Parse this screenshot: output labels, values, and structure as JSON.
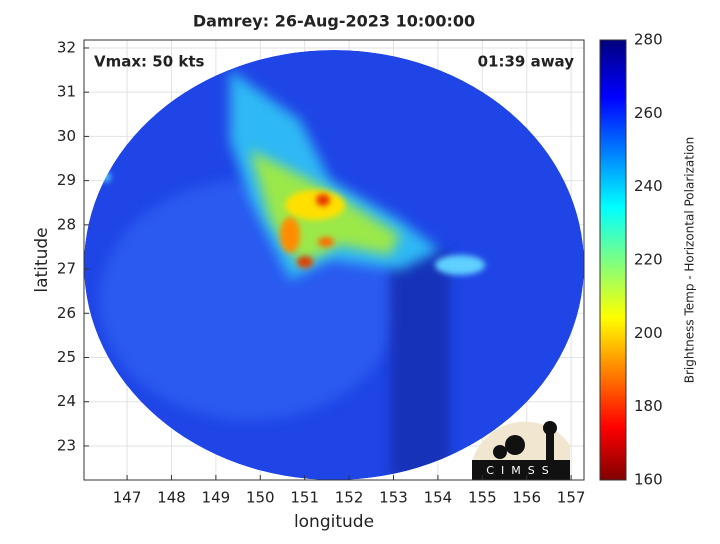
{
  "chart_data": {
    "type": "map",
    "title": "Damrey: 26-Aug-2023 10:00:00",
    "annotations": [
      "Vmax: 50 kts",
      "01:39 away"
    ],
    "x_label": "longitude",
    "y_label": "latitude",
    "xlim": [
      146.03,
      157.29
    ],
    "xticks": [
      147,
      148,
      149,
      150,
      151,
      152,
      153,
      154,
      155,
      156,
      157
    ],
    "ylim": [
      22.23,
      32.18
    ],
    "yticks": [
      23,
      24,
      25,
      26,
      27,
      28,
      29,
      30,
      31,
      32
    ],
    "grid": true,
    "colorbar": {
      "label": "Brightness Temp - Horizontal Polarization",
      "lim": [
        160,
        280
      ],
      "ticks": [
        160,
        180,
        200,
        220,
        240,
        260,
        280
      ]
    },
    "logo_text": "CIMSS"
  }
}
